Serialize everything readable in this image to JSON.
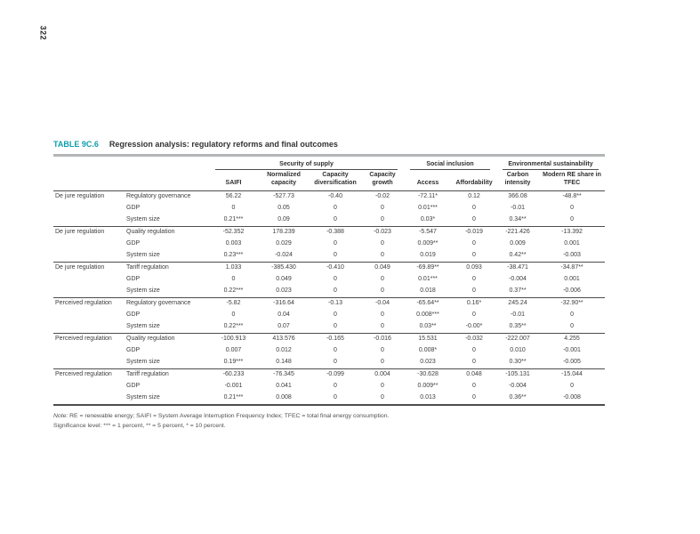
{
  "page": {
    "number": "322"
  },
  "table": {
    "label": "TABLE 9C.6",
    "title": "Regression analysis: regulatory reforms and final outcomes",
    "groups": [
      {
        "label": "Security of supply",
        "span": 4
      },
      {
        "label": "Social inclusion",
        "span": 2
      },
      {
        "label": "Environmental sustainability",
        "span": 2
      }
    ],
    "columns": [
      "SAIFI",
      "Normalized capacity",
      "Capacity diversification",
      "Capacity growth",
      "Access",
      "Affordability",
      "Carbon intensity",
      "Modern RE share in TFEC"
    ],
    "rows": [
      {
        "group": "De jure regulation",
        "variable": "Regulatory governance",
        "values": [
          "56.22",
          "-527.73",
          "-0.40",
          "-0.02",
          "-72.11*",
          "0.12",
          "366.08",
          "-48.8**"
        ]
      },
      {
        "group": "",
        "variable": "GDP",
        "values": [
          "0",
          "0.05",
          "0",
          "0",
          "0.01***",
          "0",
          "-0.01",
          "0"
        ]
      },
      {
        "group": "",
        "variable": "System size",
        "values": [
          "0.21***",
          "0.09",
          "0",
          "0",
          "0.03*",
          "0",
          "0.34**",
          "0"
        ]
      },
      {
        "group": "De jure regulation",
        "variable": "Quality regulation",
        "values": [
          "-52.352",
          "178.239",
          "-0.388",
          "-0.023",
          "-5.547",
          "-0.019",
          "-221.426",
          "-13.392"
        ]
      },
      {
        "group": "",
        "variable": "GDP",
        "values": [
          "0.003",
          "0.029",
          "0",
          "0",
          "0.009**",
          "0",
          "0.009",
          "0.001"
        ]
      },
      {
        "group": "",
        "variable": "System size",
        "values": [
          "0.23***",
          "-0.024",
          "0",
          "0",
          "0.019",
          "0",
          "0.42**",
          "-0.003"
        ]
      },
      {
        "group": "De jure regulation",
        "variable": "Tariff regulation",
        "values": [
          "1.033",
          "-385.430",
          "-0.410",
          "0.049",
          "-69.89**",
          "0.093",
          "-38.471",
          "-34.87**"
        ]
      },
      {
        "group": "",
        "variable": "GDP",
        "values": [
          "0",
          "0.049",
          "0",
          "0",
          "0.01***",
          "0",
          "-0.004",
          "0.001"
        ]
      },
      {
        "group": "",
        "variable": "System size",
        "values": [
          "0.22***",
          "0.023",
          "0",
          "0",
          "0.018",
          "0",
          "0.37**",
          "-0.006"
        ]
      },
      {
        "group": "Perceived regulation",
        "variable": "Regulatory governance",
        "values": [
          "-5.82",
          "-316.64",
          "-0.13",
          "-0.04",
          "-65.64**",
          "0.16*",
          "245.24",
          "-32.90**"
        ]
      },
      {
        "group": "",
        "variable": "GDP",
        "values": [
          "0",
          "0.04",
          "0",
          "0",
          "0.008***",
          "0",
          "-0.01",
          "0"
        ]
      },
      {
        "group": "",
        "variable": "System size",
        "values": [
          "0.22***",
          "0.07",
          "0",
          "0",
          "0.03**",
          "-0.00*",
          "0.35**",
          "0"
        ]
      },
      {
        "group": "Perceived regulation",
        "variable": "Quality regulation",
        "values": [
          "-100.913",
          "413.576",
          "-0.165",
          "-0.016",
          "15.531",
          "-0.032",
          "-222.007",
          "4.255"
        ]
      },
      {
        "group": "",
        "variable": "GDP",
        "values": [
          "0.007",
          "0.012",
          "0",
          "0",
          "0.008*",
          "0",
          "0.010",
          "-0.001"
        ]
      },
      {
        "group": "",
        "variable": "System size",
        "values": [
          "0.19***",
          "0.148",
          "0",
          "0",
          "0.023",
          "0",
          "0.30**",
          "-0.005"
        ]
      },
      {
        "group": "Perceived regulation",
        "variable": "Tariff regulation",
        "values": [
          "-60.233",
          "-76.345",
          "-0.099",
          "0.004",
          "-30.628",
          "0.048",
          "-105.131",
          "-15.044"
        ]
      },
      {
        "group": "",
        "variable": "GDP",
        "values": [
          "-0.001",
          "0.041",
          "0",
          "0",
          "0.009**",
          "0",
          "-0.004",
          "0"
        ]
      },
      {
        "group": "",
        "variable": "System size",
        "values": [
          "0.21***",
          "0.008",
          "0",
          "0",
          "0.013",
          "0",
          "0.36**",
          "-0.008"
        ]
      }
    ]
  },
  "notes": {
    "note_label": "Note:",
    "note_text": "RE = renewable energy; SAIFI = System Average Interruption Frequency Index; TFEC = total final energy consumption.",
    "significance": "Significance level: *** = 1 percent, ** = 5 percent, * = 10 percent."
  },
  "colors": {
    "accent": "#0f9dab",
    "rule_gray": "#b3b5b7",
    "rule_dark": "#4d4d4d",
    "text": "#3d3d3d"
  }
}
